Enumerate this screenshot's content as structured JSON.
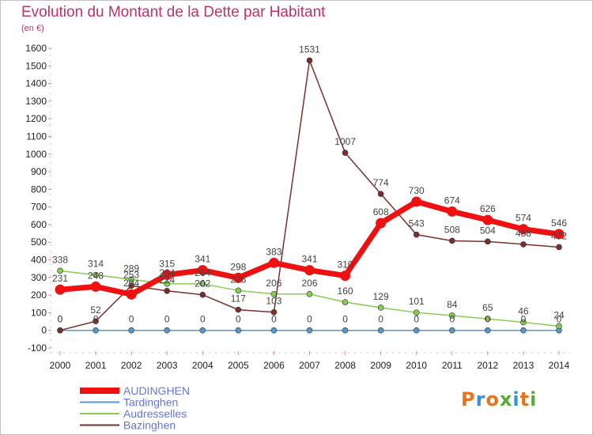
{
  "title": "Evolution du Montant de la Dette par Habitant",
  "subtitle": "(en €)",
  "logo": {
    "text": "Proxiti",
    "colors": [
      "#e8731a",
      "#3a8fd8",
      "#e8731a",
      "#5aaa3a",
      "#3a8fd8",
      "#e8731a",
      "#5aaa3a"
    ]
  },
  "chart_data": {
    "type": "line",
    "x": [
      "2000",
      "2001",
      "2002",
      "2003",
      "2004",
      "2005",
      "2006",
      "2007",
      "2008",
      "2009",
      "2010",
      "2011",
      "2012",
      "2013",
      "2014"
    ],
    "ylim": [
      -100,
      1600
    ],
    "yticks": [
      -100,
      0,
      100,
      200,
      300,
      400,
      500,
      600,
      700,
      800,
      900,
      1000,
      1100,
      1200,
      1300,
      1400,
      1500,
      1600
    ],
    "grid": false,
    "legend": "bottom-left",
    "series": [
      {
        "name": "AUDINGHEN",
        "color": "#ee1111",
        "values": [
          231,
          248,
          204,
          315,
          341,
          298,
          383,
          341,
          310,
          608,
          730,
          674,
          626,
          574,
          546
        ]
      },
      {
        "name": "Tardinghen",
        "color": "#5599cc",
        "values": [
          0,
          0,
          0,
          0,
          0,
          0,
          0,
          0,
          0,
          0,
          0,
          0,
          0,
          0,
          0
        ]
      },
      {
        "name": "Audresselles",
        "color": "#88cc55",
        "values": [
          338,
          314,
          289,
          264,
          264,
          226,
          206,
          206,
          160,
          129,
          101,
          84,
          65,
          46,
          24
        ]
      },
      {
        "name": "Bazinghen",
        "color": "#7a2f2f",
        "values": [
          0,
          52,
          253,
          224,
          202,
          117,
          103,
          1531,
          1007,
          774,
          543,
          508,
          504,
          488,
          472
        ]
      }
    ]
  }
}
